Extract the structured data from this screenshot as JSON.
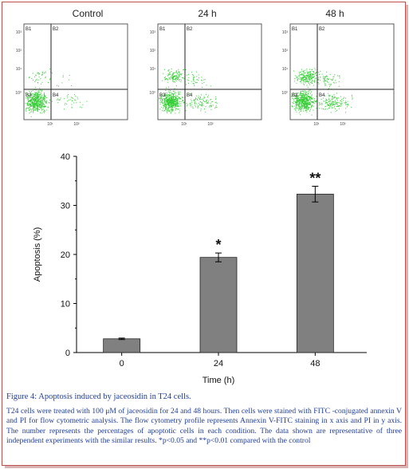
{
  "flow_panels": [
    {
      "title": "Control",
      "quadrants": [
        "B1",
        "B2",
        "B3",
        "B4"
      ],
      "y_ticks": [
        "10³",
        "10²",
        "10¹",
        "10⁰"
      ],
      "x_ticks": [
        "10¹",
        "10²"
      ]
    },
    {
      "title": "24 h",
      "quadrants": [
        "B1",
        "B2",
        "B3",
        "B4"
      ],
      "y_ticks": [
        "10³",
        "10²",
        "10¹",
        "10⁰"
      ],
      "x_ticks": [
        "10¹",
        "10²"
      ]
    },
    {
      "title": "48 h",
      "quadrants": [
        "B1",
        "B2",
        "B3",
        "B4"
      ],
      "y_ticks": [
        "10³",
        "10²",
        "10¹",
        "10⁰"
      ],
      "x_ticks": [
        "10¹",
        "10²"
      ]
    }
  ],
  "chart_data": {
    "type": "bar",
    "title": "",
    "categories": [
      "0",
      "24",
      "48"
    ],
    "values": [
      2.8,
      19.4,
      32.3
    ],
    "errors": [
      0.15,
      0.9,
      1.6
    ],
    "significance": [
      "",
      "*",
      "**"
    ],
    "xlabel": "Time (h)",
    "ylabel": "Apoptosis (%)",
    "ylim": [
      0,
      40
    ],
    "yticks": [
      0,
      10,
      20,
      30,
      40
    ],
    "grid": false,
    "bar_color": "#808080"
  },
  "caption": {
    "title": "Figure 4: Apoptosis induced by jaceosidin in T24 cells.",
    "body": "T24 cells were treated with 100 μM of jaceosidin for 24 and 48 hours. Then cells were stained with FITC -conjugated annexin V and PI for flow cytometric analysis. The flow cytometry profile represents Annexin V-FITC staining in x axis and PI in y axis. The number represents the percentages of apoptotic cells in each condition. The data shown are representative of three independent experiments with the similar results. *p<0.05 and **p<0.01 compared with the control"
  },
  "colors": {
    "frame": "#c0504d",
    "caption_text": "#1f3d9a",
    "dots": "#33cc33"
  }
}
